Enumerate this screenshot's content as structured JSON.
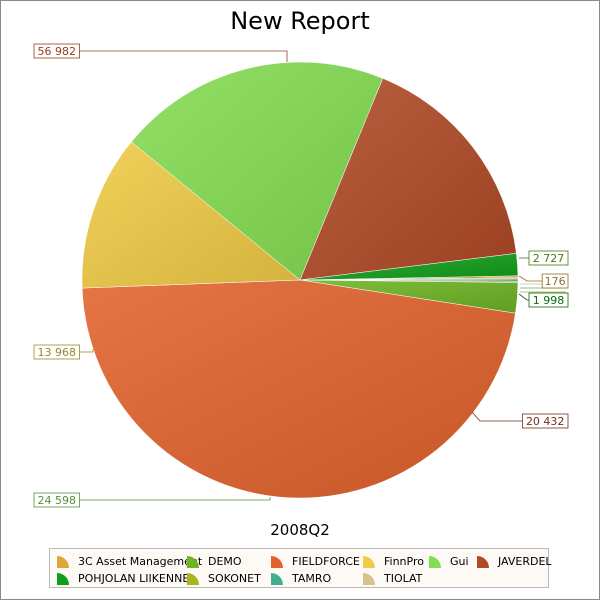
{
  "title": "New Report",
  "chart_data": {
    "type": "pie",
    "title": "New Report",
    "subtitle": "2008Q2",
    "legend_position": "bottom",
    "slices": [
      {
        "name": "3C Asset Management",
        "value": 176,
        "color": "#e0a43a"
      },
      {
        "name": "DEMO",
        "value": 2727,
        "color": "#6eb423"
      },
      {
        "name": "FIELDFORCE",
        "value": 56982,
        "color": "#e2622c"
      },
      {
        "name": "FinnPro",
        "value": 13968,
        "color": "#f0cb45"
      },
      {
        "name": "Gui",
        "value": 24598,
        "color": "#84dc52"
      },
      {
        "name": "JAVERDEL",
        "value": 20432,
        "color": "#b04a26"
      },
      {
        "name": "POHJOLAN LIIKENNE",
        "value": 1998,
        "color": "#119e1a"
      },
      {
        "name": "SOKONET",
        "value": 120,
        "color": "#a9b51d"
      },
      {
        "name": "TAMRO",
        "value": 190,
        "color": "#3fb08e"
      },
      {
        "name": "TIOLAT",
        "value": 110,
        "color": "#d8c18e"
      }
    ],
    "data_labels": [
      {
        "text": "56 982",
        "slice": "FIELDFORCE"
      },
      {
        "text": "2 727",
        "slice": "DEMO"
      },
      {
        "text": "176",
        "slice": "3C Asset Management"
      },
      {
        "text": "1 998",
        "slice": "POHJOLAN LIIKENNE"
      },
      {
        "text": "20 432",
        "slice": "JAVERDEL"
      },
      {
        "text": "24 598",
        "slice": "Gui"
      },
      {
        "text": "13 968",
        "slice": "FinnPro"
      }
    ]
  }
}
